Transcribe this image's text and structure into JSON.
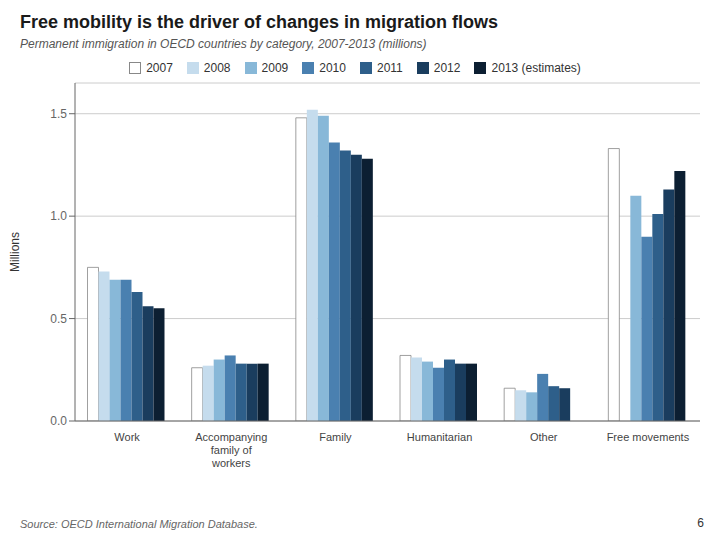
{
  "chart_data": {
    "type": "bar",
    "title": "Free mobility is the driver of changes in migration flows",
    "subtitle": "Permanent immigration in OECD countries by category, 2007-2013 (millions)",
    "source": "Source: OECD International Migration Database.",
    "annotations": [
      "6"
    ],
    "ylabel": "Millions",
    "categories": [
      "Work",
      "Accompanying\nfamily of\nworkers",
      "Family",
      "Humanitarian",
      "Other",
      "Free movements"
    ],
    "series": [
      {
        "name": "2007",
        "color": "#ffffff",
        "values": [
          0.75,
          0.26,
          1.48,
          0.32,
          0.16,
          1.33
        ]
      },
      {
        "name": "2008",
        "color": "#c5dced",
        "values": [
          0.73,
          0.27,
          1.52,
          0.31,
          0.15,
          0.0
        ]
      },
      {
        "name": "2009",
        "color": "#88b8d8",
        "values": [
          0.69,
          0.3,
          1.49,
          0.29,
          0.14,
          1.1
        ]
      },
      {
        "name": "2010",
        "color": "#4a80b0",
        "values": [
          0.69,
          0.32,
          1.36,
          0.26,
          0.23,
          0.9
        ]
      },
      {
        "name": "2011",
        "color": "#2e5f8a",
        "values": [
          0.63,
          0.28,
          1.32,
          0.3,
          0.17,
          1.01
        ]
      },
      {
        "name": "2012",
        "color": "#1a3d5e",
        "values": [
          0.56,
          0.28,
          1.3,
          0.28,
          0.16,
          1.13
        ]
      },
      {
        "name": "2013 (estimates)",
        "color": "#0c1f32",
        "values": [
          0.55,
          0.28,
          1.28,
          0.28,
          0.0,
          1.22
        ]
      }
    ],
    "ylim": [
      0,
      1.65
    ],
    "yticks": [
      {
        "value": 0,
        "label": "0.0"
      },
      0.5,
      {
        "value": 1,
        "label": "1.0"
      },
      1.5
    ],
    "grid": true,
    "legend": "top"
  }
}
